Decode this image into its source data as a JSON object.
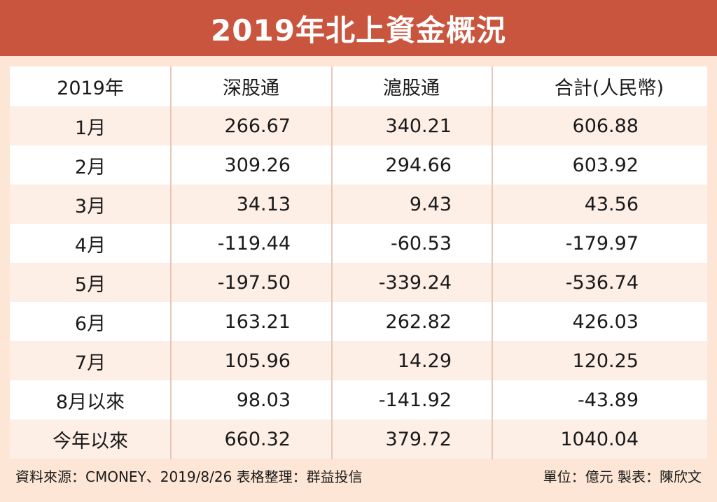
{
  "title": "2019年北上資金概況",
  "table": {
    "headers": [
      "2019年",
      "深股通",
      "滬股通",
      "合計(人民幣)"
    ],
    "rows": [
      [
        "1月",
        "266.67",
        "340.21",
        "606.88"
      ],
      [
        "2月",
        "309.26",
        "294.66",
        "603.92"
      ],
      [
        "3月",
        "34.13",
        "9.43",
        "43.56"
      ],
      [
        "4月",
        "-119.44",
        "-60.53",
        "-179.97"
      ],
      [
        "5月",
        "-197.50",
        "-339.24",
        "-536.74"
      ],
      [
        "6月",
        "163.21",
        "262.82",
        "426.03"
      ],
      [
        "7月",
        "105.96",
        "14.29",
        "120.25"
      ],
      [
        "8月以來",
        "98.03",
        "-141.92",
        "-43.89"
      ],
      [
        "今年以來",
        "660.32",
        "379.72",
        "1040.04"
      ]
    ]
  },
  "footer": {
    "source": "資料來源：CMONEY、2019/8/26  表格整理：群益投信",
    "unit": "單位：億元  製表：陳欣文"
  },
  "colors": {
    "title_bg": "#c9553f",
    "page_bg": "#fde6d6",
    "row_tint": "#fdeee6"
  }
}
